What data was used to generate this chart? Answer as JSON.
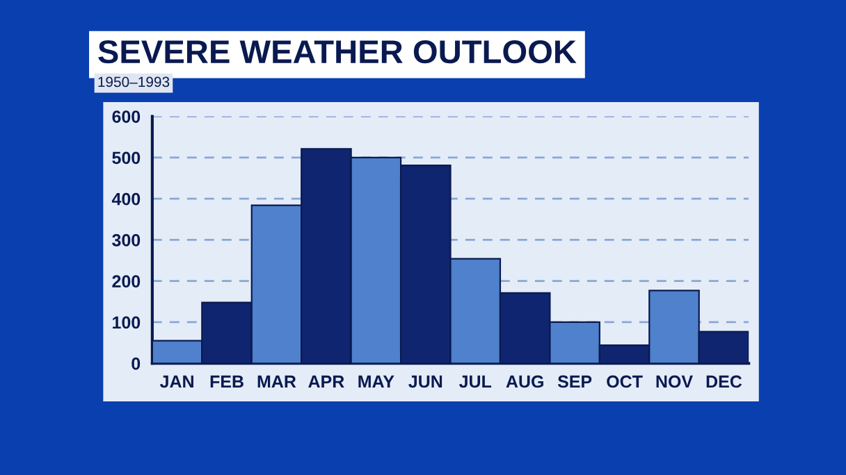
{
  "chart_data": {
    "type": "bar",
    "title": "SEVERE WEATHER OUTLOOK",
    "subtitle": "1950–1993",
    "categories": [
      "JAN",
      "FEB",
      "MAR",
      "APR",
      "MAY",
      "JUN",
      "JUL",
      "AUG",
      "SEP",
      "OCT",
      "NOV",
      "DEC"
    ],
    "values": [
      55,
      148,
      384,
      521,
      500,
      481,
      254,
      171,
      100,
      44,
      177,
      77
    ],
    "colors": [
      "#4f81cc",
      "#0f2570",
      "#4f81cc",
      "#0f2570",
      "#4f81cc",
      "#0f2570",
      "#4f81cc",
      "#0f2570",
      "#4f81cc",
      "#0f2570",
      "#4f81cc",
      "#0f2570"
    ],
    "ylim": [
      0,
      600
    ],
    "yticks": [
      0,
      100,
      200,
      300,
      400,
      500,
      600
    ],
    "grid": "y"
  }
}
